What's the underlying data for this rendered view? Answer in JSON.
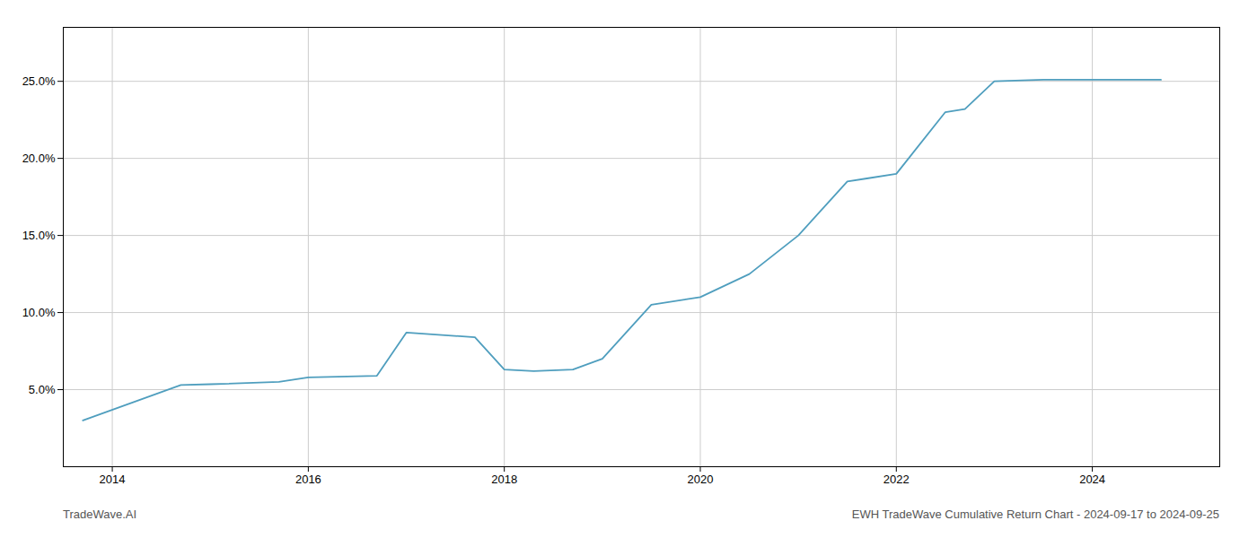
{
  "chart_data": {
    "type": "line",
    "title": "EWH TradeWave Cumulative Return Chart - 2024-09-17 to 2024-09-25",
    "annotations": [
      "TradeWave.AI"
    ],
    "x": [
      2013.7,
      2014.7,
      2015.0,
      2015.7,
      2016.0,
      2016.7,
      2017.0,
      2017.7,
      2018.0,
      2018.3,
      2018.7,
      2019.0,
      2019.5,
      2020.0,
      2020.5,
      2021.0,
      2021.5,
      2021.7,
      2022.0,
      2022.5,
      2022.7,
      2023.0,
      2023.5,
      2023.7,
      2024.0,
      2024.7
    ],
    "values": [
      3.0,
      5.3,
      5.35,
      5.5,
      5.8,
      5.9,
      8.7,
      8.4,
      6.3,
      6.2,
      6.3,
      7.0,
      10.5,
      11.0,
      12.5,
      15.0,
      18.5,
      18.7,
      19.0,
      23.0,
      23.2,
      25.0,
      25.1,
      25.1,
      25.1,
      25.1
    ],
    "color": "#4f9ebe",
    "xlim": [
      2013.5,
      2025.3
    ],
    "xticks": [
      2014,
      2016,
      2018,
      2020,
      2022,
      2024
    ],
    "ylim": [
      0.0,
      28.5
    ],
    "yticks": [
      {
        "value": 5.0,
        "label": "5.0%"
      },
      {
        "value": 10.0,
        "label": "10.0%"
      },
      {
        "value": 15.0,
        "label": "15.0%"
      },
      {
        "value": 20.0,
        "label": "20.0%"
      },
      {
        "value": 25.0,
        "label": "25.0%"
      }
    ],
    "grid": true
  }
}
